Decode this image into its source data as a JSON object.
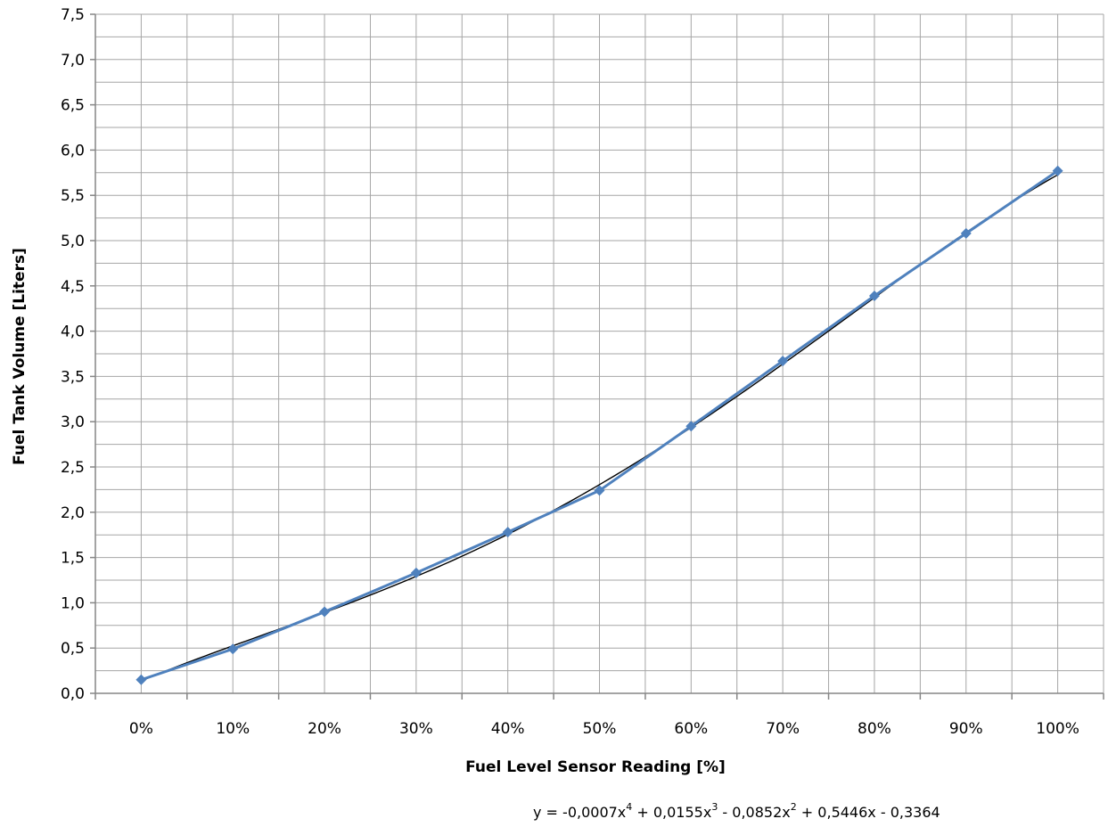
{
  "chart_data": {
    "type": "line",
    "xlabel": "Fuel Level Sensor Reading [%]",
    "ylabel": "Fuel Tank Volume [Liters]",
    "categories": [
      "0%",
      "10%",
      "20%",
      "30%",
      "40%",
      "50%",
      "60%",
      "70%",
      "80%",
      "90%",
      "100%"
    ],
    "y_ticks": [
      "0,0",
      "0,5",
      "1,0",
      "1,5",
      "2,0",
      "2,5",
      "3,0",
      "3,5",
      "4,0",
      "4,5",
      "5,0",
      "5,5",
      "6,0",
      "6,5",
      "7,0",
      "7,5"
    ],
    "ylim": [
      0,
      7.5
    ],
    "grid": true,
    "grid_minor_y": 0.25,
    "series": [
      {
        "values": [
          0.15,
          0.49,
          0.9,
          1.33,
          1.78,
          2.24,
          2.95,
          3.67,
          4.39,
          5.08,
          5.77
        ],
        "color": "#4f81bd",
        "marker": "diamond"
      }
    ],
    "trendline": {
      "type": "polynomial",
      "order": 4,
      "coefficients": [
        -0.0007,
        0.0155,
        -0.0852,
        0.5446,
        -0.3364
      ],
      "color": "#000000",
      "equation": {
        "lead": "y = -0,0007x",
        "exp4": "4",
        "t3": "  + 0,0155x",
        "exp3": "3",
        "t2": "  - 0,0852x",
        "exp2": "2",
        "tail": "  + 0,5446x  - 0,3364"
      }
    }
  }
}
